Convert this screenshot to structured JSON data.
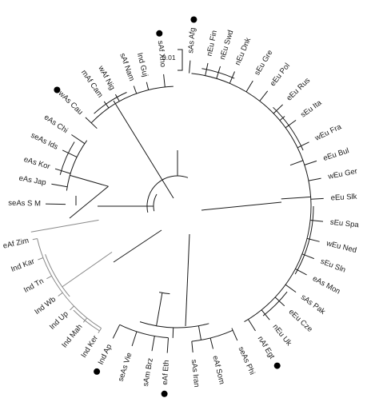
{
  "figure": {
    "colors": {
      "ink": "#1a1a1a",
      "grey_branch": "#8a8a8a",
      "background": "#ffffff"
    },
    "scale_bar": {
      "label": "0.01"
    },
    "markers": {
      "shape": "filled-circle",
      "color": "#000000"
    },
    "leaves": [
      {
        "label": "sAs Afg",
        "marked": true
      },
      {
        "label": "nEu Fin",
        "marked": false
      },
      {
        "label": "nEu Swd",
        "marked": false
      },
      {
        "label": "nEu Dnk",
        "marked": false
      },
      {
        "label": "sEu Gre",
        "marked": false
      },
      {
        "label": "eEu Pol",
        "marked": false
      },
      {
        "label": "eEu Rus",
        "marked": false
      },
      {
        "label": "sEu Ita",
        "marked": false
      },
      {
        "label": "wEu Fra",
        "marked": false
      },
      {
        "label": "eEu Bul",
        "marked": false
      },
      {
        "label": "wEu Ger",
        "marked": false
      },
      {
        "label": "eEu Slk",
        "marked": false
      },
      {
        "label": "sEu Spa",
        "marked": false
      },
      {
        "label": "wEu Ned",
        "marked": false
      },
      {
        "label": "sEu Sln",
        "marked": false
      },
      {
        "label": "eAs Mon",
        "marked": false
      },
      {
        "label": "sAs Pak",
        "marked": false
      },
      {
        "label": "eEu Cze",
        "marked": false
      },
      {
        "label": "nEu Uk",
        "marked": false
      },
      {
        "label": "nAf Egt",
        "marked": true
      },
      {
        "label": "seAs Phi",
        "marked": false
      },
      {
        "label": "eAf Som",
        "marked": false
      },
      {
        "label": "sAs Iran",
        "marked": false
      },
      {
        "label": "eAf Eth",
        "marked": true
      },
      {
        "label": "sAm Brz",
        "marked": false
      },
      {
        "label": "seAs Vie",
        "marked": false
      },
      {
        "label": "Ind Ap",
        "marked": true
      },
      {
        "label": "Ind Ker",
        "marked": false
      },
      {
        "label": "Ind Mah",
        "marked": false
      },
      {
        "label": "Ind Up",
        "marked": false
      },
      {
        "label": "Ind Wb",
        "marked": false
      },
      {
        "label": "Ind Tn",
        "marked": false
      },
      {
        "label": "Ind Kar",
        "marked": false
      },
      {
        "label": "eAf Zim",
        "marked": true
      },
      {
        "label": "seAs S M",
        "marked": false
      },
      {
        "label": "eAs Jap",
        "marked": false
      },
      {
        "label": "eAs Kor",
        "marked": false
      },
      {
        "label": "seAs Ids",
        "marked": false
      },
      {
        "label": "eAs Chi",
        "marked": false
      },
      {
        "label": "wAs Cau",
        "marked": true
      },
      {
        "label": "mAf Cam",
        "marked": false
      },
      {
        "label": "wAf Nig",
        "marked": false
      },
      {
        "label": "sAf Nam",
        "marked": false
      },
      {
        "label": "Ind Guj",
        "marked": false
      },
      {
        "label": "sAf Xho",
        "marked": true
      }
    ]
  }
}
